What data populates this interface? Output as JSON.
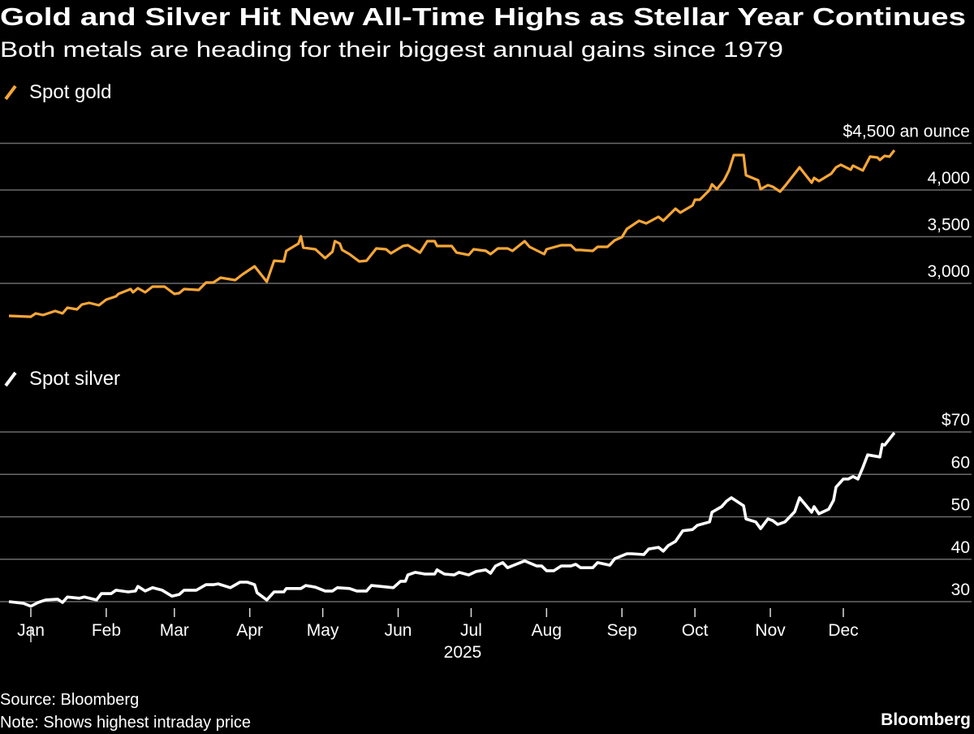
{
  "header": {
    "title": "Gold and Silver Hit New All-Time Highs as Stellar Year Continues",
    "subtitle": "Both metals are heading for their biggest annual gains since 1979"
  },
  "footer": {
    "source": "Source: Bloomberg",
    "note": "Note: Shows highest intraday price",
    "logo": "Bloomberg"
  },
  "colors": {
    "gold": "#f6a637",
    "silver": "#ffffff",
    "background": "#000000",
    "grid": "#6b6b6b"
  },
  "chart_data": [
    {
      "type": "line",
      "series_name": "Spot gold",
      "legend_icon": "slash-line-icon",
      "ylim": [
        2600,
        4500
      ],
      "yticks": [
        3000,
        3500,
        4000,
        4500
      ],
      "ytick_labels": [
        "3,000",
        "3,500",
        "4,000",
        "$4,500 an ounce"
      ],
      "grid": true,
      "legend_placement": "top-left",
      "x": [
        "2024-12-23",
        "2025-01-01",
        "2025-01-03",
        "2025-01-06",
        "2025-01-11",
        "2025-01-14",
        "2025-01-16",
        "2025-01-20",
        "2025-01-22",
        "2025-01-25",
        "2025-01-29",
        "2025-02-01",
        "2025-02-05",
        "2025-02-06",
        "2025-02-11",
        "2025-02-12",
        "2025-02-14",
        "2025-02-17",
        "2025-02-20",
        "2025-02-25",
        "2025-03-01",
        "2025-03-03",
        "2025-03-05",
        "2025-03-11",
        "2025-03-14",
        "2025-03-17",
        "2025-03-20",
        "2025-03-26",
        "2025-03-29",
        "2025-04-03",
        "2025-04-08",
        "2025-04-11",
        "2025-04-15",
        "2025-04-16",
        "2025-04-21",
        "2025-04-22",
        "2025-04-23",
        "2025-04-28",
        "2025-05-02",
        "2025-05-05",
        "2025-05-06",
        "2025-05-08",
        "2025-05-09",
        "2025-05-12",
        "2025-05-16",
        "2025-05-19",
        "2025-05-23",
        "2025-05-27",
        "2025-05-29",
        "2025-06-03",
        "2025-06-05",
        "2025-06-10",
        "2025-06-13",
        "2025-06-16",
        "2025-06-17",
        "2025-06-23",
        "2025-06-25",
        "2025-06-30",
        "2025-07-02",
        "2025-07-07",
        "2025-07-09",
        "2025-07-12",
        "2025-07-16",
        "2025-07-18",
        "2025-07-23",
        "2025-07-25",
        "2025-07-31",
        "2025-08-01",
        "2025-08-07",
        "2025-08-11",
        "2025-08-13",
        "2025-08-15",
        "2025-08-20",
        "2025-08-22",
        "2025-08-26",
        "2025-08-29",
        "2025-09-01",
        "2025-09-03",
        "2025-09-05",
        "2025-09-08",
        "2025-09-11",
        "2025-09-16",
        "2025-09-18",
        "2025-09-23",
        "2025-09-25",
        "2025-09-30",
        "2025-10-01",
        "2025-10-03",
        "2025-10-07",
        "2025-10-08",
        "2025-10-10",
        "2025-10-13",
        "2025-10-15",
        "2025-10-17",
        "2025-10-21",
        "2025-10-22",
        "2025-10-27",
        "2025-10-28",
        "2025-10-31",
        "2025-11-02",
        "2025-11-05",
        "2025-11-07",
        "2025-11-13",
        "2025-11-18",
        "2025-11-19",
        "2025-11-21",
        "2025-11-26",
        "2025-11-28",
        "2025-11-30",
        "2025-12-04",
        "2025-12-05",
        "2025-12-09",
        "2025-12-12",
        "2025-12-15",
        "2025-12-16",
        "2025-12-18",
        "2025-12-20",
        "2025-12-22"
      ],
      "values": [
        2652,
        2643,
        2678,
        2661,
        2704,
        2678,
        2739,
        2722,
        2774,
        2791,
        2765,
        2826,
        2861,
        2887,
        2939,
        2904,
        2948,
        2904,
        2965,
        2965,
        2887,
        2896,
        2939,
        2930,
        3009,
        3009,
        3061,
        3035,
        3096,
        3183,
        3017,
        3243,
        3235,
        3348,
        3426,
        3504,
        3383,
        3365,
        3270,
        3339,
        3452,
        3426,
        3357,
        3313,
        3235,
        3243,
        3374,
        3365,
        3322,
        3400,
        3409,
        3330,
        3452,
        3452,
        3400,
        3400,
        3330,
        3304,
        3365,
        3348,
        3313,
        3374,
        3374,
        3348,
        3452,
        3391,
        3313,
        3365,
        3409,
        3409,
        3357,
        3357,
        3348,
        3391,
        3391,
        3461,
        3496,
        3583,
        3617,
        3670,
        3643,
        3713,
        3670,
        3800,
        3757,
        3835,
        3896,
        3896,
        4000,
        4061,
        4009,
        4104,
        4209,
        4374,
        4374,
        4157,
        4104,
        4009,
        4052,
        4035,
        3983,
        4043,
        4243,
        4078,
        4130,
        4096,
        4174,
        4243,
        4270,
        4217,
        4261,
        4209,
        4357,
        4348,
        4322,
        4365,
        4357,
        4426
      ]
    },
    {
      "type": "line",
      "series_name": "Spot silver",
      "legend_icon": "slash-line-icon",
      "ylim": [
        28,
        70
      ],
      "yticks": [
        30,
        40,
        50,
        60,
        70
      ],
      "ytick_labels": [
        "30",
        "40",
        "50",
        "60",
        "$70"
      ],
      "grid": true,
      "legend_placement": "top-left",
      "xaxis": {
        "ticks": [
          "2025-01-01",
          "2025-02-01",
          "2025-03-01",
          "2025-04-01",
          "2025-05-01",
          "2025-06-01",
          "2025-07-01",
          "2025-08-01",
          "2025-09-01",
          "2025-10-01",
          "2025-11-01",
          "2025-12-01"
        ],
        "tick_labels": [
          "Jan",
          "Feb",
          "Mar",
          "Apr",
          "May",
          "Jun",
          "Jul",
          "Aug",
          "Sep",
          "Oct",
          "Nov",
          "Dec"
        ],
        "year_label": "2025"
      },
      "x": [
        "2024-12-23",
        "2024-12-29",
        "2025-01-01",
        "2025-01-04",
        "2025-01-07",
        "2025-01-12",
        "2025-01-14",
        "2025-01-16",
        "2025-01-21",
        "2025-01-23",
        "2025-01-28",
        "2025-01-30",
        "2025-02-03",
        "2025-02-05",
        "2025-02-10",
        "2025-02-13",
        "2025-02-14",
        "2025-02-17",
        "2025-02-20",
        "2025-02-24",
        "2025-02-28",
        "2025-03-03",
        "2025-03-05",
        "2025-03-10",
        "2025-03-14",
        "2025-03-17",
        "2025-03-19",
        "2025-03-24",
        "2025-03-28",
        "2025-03-31",
        "2025-04-03",
        "2025-04-04",
        "2025-04-08",
        "2025-04-11",
        "2025-04-15",
        "2025-04-16",
        "2025-04-22",
        "2025-04-24",
        "2025-04-28",
        "2025-05-02",
        "2025-05-05",
        "2025-05-07",
        "2025-05-12",
        "2025-05-15",
        "2025-05-19",
        "2025-05-21",
        "2025-05-30",
        "2025-06-02",
        "2025-06-04",
        "2025-06-05",
        "2025-06-08",
        "2025-06-12",
        "2025-06-16",
        "2025-06-17",
        "2025-06-20",
        "2025-06-24",
        "2025-06-26",
        "2025-06-30",
        "2025-07-03",
        "2025-07-07",
        "2025-07-09",
        "2025-07-11",
        "2025-07-14",
        "2025-07-16",
        "2025-07-23",
        "2025-07-28",
        "2025-07-30",
        "2025-08-01",
        "2025-08-04",
        "2025-08-07",
        "2025-08-11",
        "2025-08-13",
        "2025-08-15",
        "2025-08-20",
        "2025-08-22",
        "2025-08-27",
        "2025-08-29",
        "2025-09-03",
        "2025-09-05",
        "2025-09-10",
        "2025-09-12",
        "2025-09-16",
        "2025-09-18",
        "2025-09-20",
        "2025-09-23",
        "2025-09-26",
        "2025-09-30",
        "2025-10-02",
        "2025-10-07",
        "2025-10-08",
        "2025-10-12",
        "2025-10-14",
        "2025-10-16",
        "2025-10-21",
        "2025-10-22",
        "2025-10-26",
        "2025-10-28",
        "2025-10-31",
        "2025-11-02",
        "2025-11-04",
        "2025-11-07",
        "2025-11-11",
        "2025-11-13",
        "2025-11-18",
        "2025-11-19",
        "2025-11-21",
        "2025-11-25",
        "2025-11-27",
        "2025-11-28",
        "2025-12-01",
        "2025-12-03",
        "2025-12-05",
        "2025-12-07",
        "2025-12-09",
        "2025-12-11",
        "2025-12-16",
        "2025-12-17",
        "2025-12-18",
        "2025-12-22"
      ],
      "values": [
        30.0,
        29.6,
        28.9,
        29.8,
        30.4,
        30.6,
        29.8,
        31.1,
        30.8,
        31.1,
        30.4,
        31.9,
        31.9,
        32.7,
        32.3,
        32.5,
        33.6,
        32.5,
        33.3,
        32.7,
        31.3,
        31.7,
        32.7,
        32.7,
        34.0,
        34.0,
        34.2,
        33.3,
        34.6,
        34.6,
        34.0,
        32.1,
        30.4,
        32.3,
        32.3,
        33.1,
        33.1,
        33.8,
        33.4,
        32.5,
        32.5,
        33.3,
        33.1,
        32.5,
        32.5,
        33.8,
        33.3,
        34.8,
        34.8,
        36.3,
        36.9,
        36.5,
        36.5,
        37.5,
        36.5,
        36.3,
        36.9,
        36.3,
        37.1,
        37.5,
        36.7,
        38.4,
        39.2,
        38.0,
        39.6,
        38.4,
        38.4,
        37.3,
        37.3,
        38.4,
        38.4,
        38.8,
        38.0,
        38.0,
        39.2,
        38.6,
        40.1,
        41.3,
        41.3,
        41.1,
        42.4,
        42.8,
        41.9,
        43.2,
        44.2,
        46.7,
        47.0,
        48.0,
        48.8,
        51.1,
        52.4,
        53.7,
        54.5,
        52.6,
        49.5,
        48.8,
        47.2,
        49.5,
        49.1,
        48.2,
        48.8,
        51.2,
        54.5,
        51.1,
        52.4,
        50.7,
        51.8,
        53.9,
        57.0,
        58.9,
        58.9,
        59.5,
        58.9,
        61.6,
        64.6,
        64.1,
        67.1,
        66.9,
        69.8
      ]
    }
  ]
}
